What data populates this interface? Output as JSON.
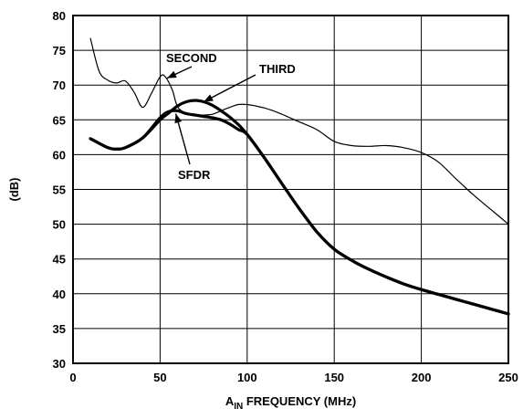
{
  "chart_data": {
    "type": "line",
    "xlabel_main": "A",
    "xlabel_sub": "IN",
    "xlabel_rest": " FREQUENCY (MHz)",
    "ylabel": "(dB)",
    "xlim": [
      0,
      250
    ],
    "ylim": [
      30,
      80
    ],
    "xticks": [
      0,
      50,
      100,
      150,
      200,
      250
    ],
    "yticks": [
      30,
      35,
      40,
      45,
      50,
      55,
      60,
      65,
      70,
      75,
      80
    ],
    "grid": true,
    "series": [
      {
        "name": "SECOND",
        "weight": "thin",
        "x": [
          10,
          15,
          20,
          25,
          30,
          35,
          40,
          45,
          50,
          53,
          57,
          60,
          65,
          70,
          75,
          80,
          85,
          90,
          95,
          100,
          105,
          110,
          115,
          120,
          130,
          140,
          150,
          160,
          170,
          180,
          190,
          200,
          210,
          220,
          230,
          240,
          250
        ],
        "y": [
          76.7,
          72.0,
          70.7,
          70.3,
          70.6,
          69.0,
          66.8,
          68.8,
          71.2,
          71.2,
          69.3,
          66.9,
          65.9,
          65.6,
          65.7,
          65.8,
          66.3,
          66.8,
          67.2,
          67.2,
          67.0,
          66.7,
          66.3,
          65.8,
          64.7,
          63.6,
          61.9,
          61.3,
          61.2,
          61.3,
          61.0,
          60.3,
          58.9,
          56.5,
          54.2,
          52.1,
          50.0
        ]
      },
      {
        "name": "THIRD",
        "weight": "thick",
        "x": [
          10,
          20,
          25,
          30,
          40,
          50,
          55,
          60,
          65,
          70,
          75,
          80,
          85,
          90,
          95,
          100,
          110,
          120,
          130,
          140,
          150,
          160,
          170,
          180,
          190,
          200,
          210,
          220,
          230,
          240,
          250
        ],
        "y": [
          62.3,
          61.0,
          60.8,
          61.0,
          62.4,
          65.0,
          66.0,
          67.0,
          67.6,
          67.8,
          67.6,
          67.1,
          66.3,
          65.4,
          64.3,
          62.9,
          59.5,
          55.8,
          52.2,
          48.9,
          46.4,
          44.8,
          43.5,
          42.4,
          41.4,
          40.6,
          39.9,
          39.2,
          38.5,
          37.8,
          37.1
        ]
      },
      {
        "name": "SFDR",
        "weight": "thick",
        "x": [
          10,
          20,
          25,
          30,
          40,
          50,
          55,
          60,
          65,
          70,
          75,
          80,
          85,
          90,
          95,
          100,
          110,
          120,
          130,
          140,
          150,
          160,
          170,
          180,
          190,
          200,
          210,
          220,
          230,
          240,
          250
        ],
        "y": [
          62.3,
          61.0,
          60.8,
          61.0,
          62.4,
          65.3,
          66.2,
          66.3,
          65.9,
          65.7,
          65.5,
          65.3,
          65.0,
          64.4,
          63.6,
          62.9,
          59.5,
          55.8,
          52.2,
          48.9,
          46.4,
          44.8,
          43.5,
          42.4,
          41.4,
          40.6,
          39.9,
          39.2,
          38.5,
          37.8,
          37.1
        ]
      }
    ],
    "annotations": [
      {
        "text": "SECOND",
        "target": [
          54,
          71.0
        ]
      },
      {
        "text": "THIRD",
        "target": [
          75,
          67.6
        ]
      },
      {
        "text": "SFDR",
        "target": [
          59,
          65.9
        ]
      }
    ]
  }
}
